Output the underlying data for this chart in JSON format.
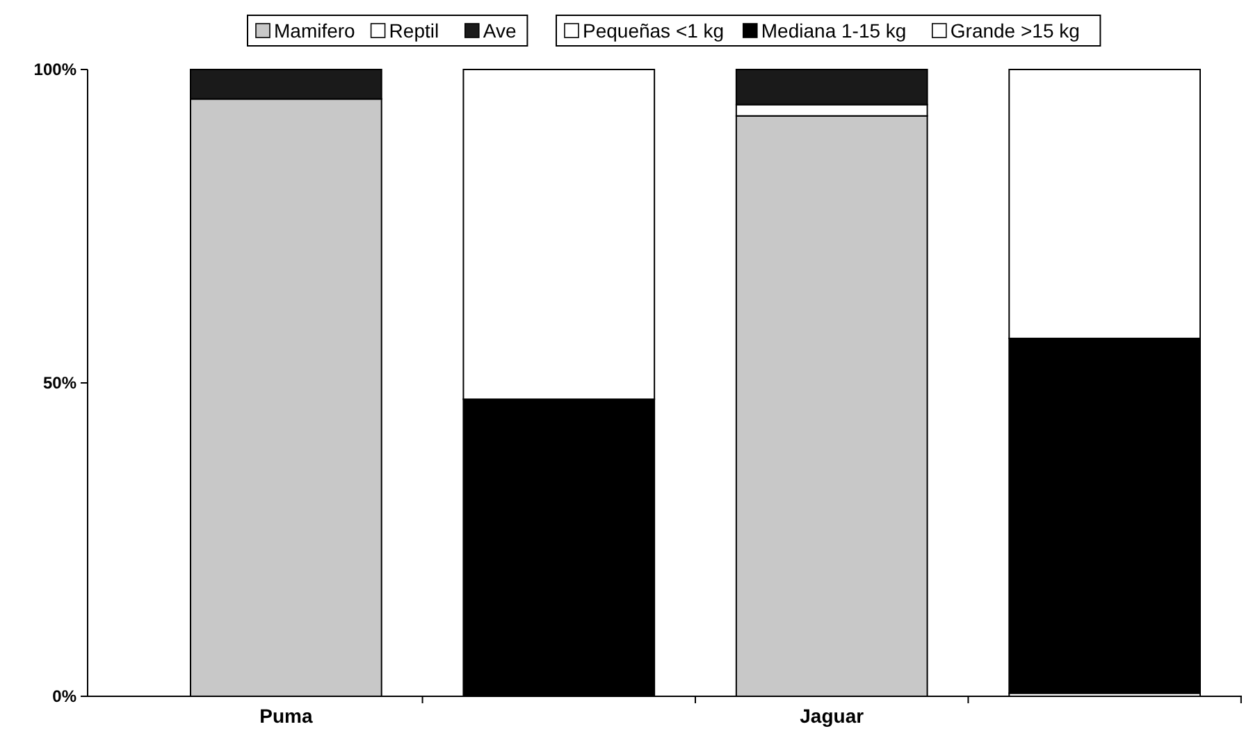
{
  "chart_data": {
    "type": "bar",
    "stacked": true,
    "categories": [
      "Puma",
      null,
      "Jaguar",
      null
    ],
    "series": [
      {
        "name": "Mamifero",
        "color": "#c8c8c8",
        "values": [
          95.3,
          null,
          92.6,
          null
        ]
      },
      {
        "name": "Reptil",
        "color": "#ffffff",
        "values": [
          0,
          null,
          1.8,
          null
        ]
      },
      {
        "name": "Ave",
        "color": "#1a1a1a",
        "values": [
          4.7,
          null,
          5.6,
          null
        ]
      },
      {
        "name": "Pequeñas <1 kg",
        "color": "#ffffff",
        "values": [
          null,
          0,
          null,
          0.5
        ]
      },
      {
        "name": "Mediana 1-15 kg",
        "color": "#000000",
        "values": [
          null,
          47.4,
          null,
          56.6
        ]
      },
      {
        "name": "Grande >15 kg",
        "color": "#ffffff",
        "values": [
          null,
          52.6,
          null,
          42.9
        ]
      }
    ],
    "ylim": [
      0,
      100
    ],
    "yticks": [
      {
        "value": 0,
        "label": "0%"
      },
      {
        "value": 50,
        "label": "50%"
      },
      {
        "value": 100,
        "label": "100%"
      }
    ],
    "legend": "top"
  }
}
